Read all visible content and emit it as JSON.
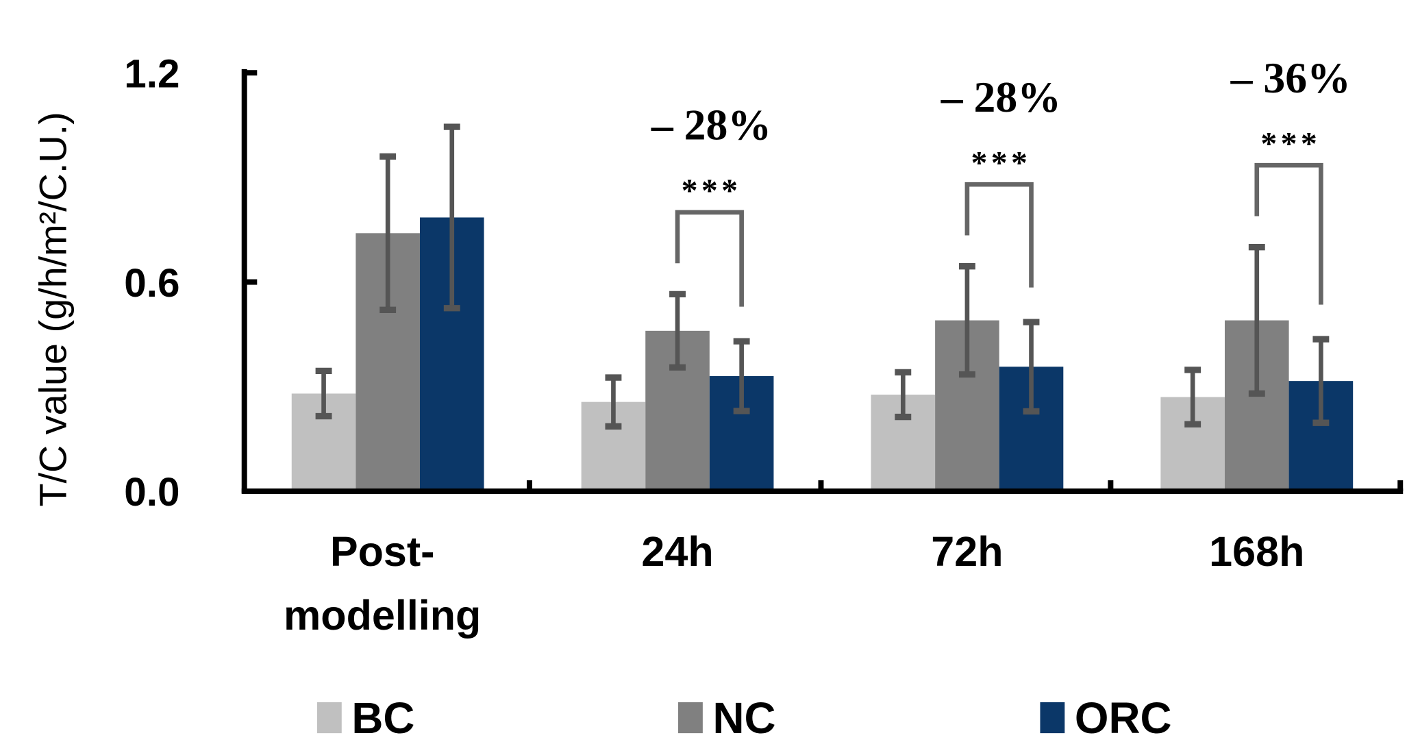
{
  "chart_data": {
    "type": "bar",
    "title": "",
    "xlabel": "",
    "ylabel": "T/C value (g/h/m²/C.U.)",
    "ylim": [
      0,
      1.2
    ],
    "yticks": [
      "0.0",
      "0.6",
      "1.2"
    ],
    "ytick_values": [
      0,
      0.6,
      1.2
    ],
    "grid": false,
    "legend_position": "bottom",
    "categories": [
      [
        "Post-",
        "modelling"
      ],
      [
        "24h"
      ],
      [
        "72h"
      ],
      [
        "168h"
      ]
    ],
    "series": [
      {
        "name": "BC",
        "color": "#c0c0c0",
        "values": [
          0.28,
          0.256,
          0.277,
          0.27
        ],
        "errors": [
          0.065,
          0.07,
          0.064,
          0.078
        ]
      },
      {
        "name": "NC",
        "color": "#808080",
        "values": [
          0.74,
          0.46,
          0.49,
          0.49
        ],
        "errors": [
          0.22,
          0.105,
          0.155,
          0.21
        ]
      },
      {
        "name": "ORC",
        "color": "#0b3768",
        "values": [
          0.785,
          0.33,
          0.357,
          0.316
        ],
        "errors": [
          0.26,
          0.1,
          0.128,
          0.12
        ]
      }
    ],
    "error_bar_color": "#555555",
    "annotations": [
      {
        "category_index": 1,
        "between": [
          "NC",
          "ORC"
        ],
        "significance": "***",
        "change": "– 28%"
      },
      {
        "category_index": 2,
        "between": [
          "NC",
          "ORC"
        ],
        "significance": "***",
        "change": "– 28%"
      },
      {
        "category_index": 3,
        "between": [
          "NC",
          "ORC"
        ],
        "significance": "***",
        "change": "– 36%"
      }
    ]
  }
}
